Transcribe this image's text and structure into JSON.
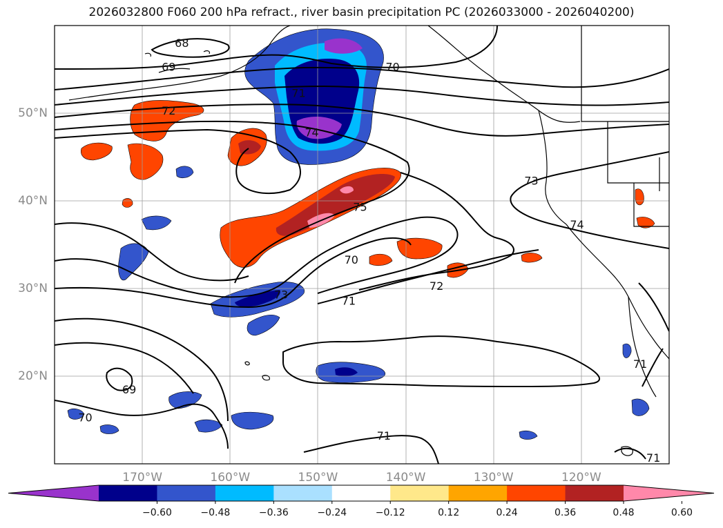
{
  "title": "2026032800 F060 200 hPa refract., river basin precipitation PC (2026033000 - 2026040200)",
  "map": {
    "extent": {
      "lon_min": -180,
      "lon_max": -110,
      "lat_min": 10,
      "lat_max": 60
    },
    "lat_ticks": [
      {
        "value": 20,
        "label": "20°N"
      },
      {
        "value": 30,
        "label": "30°N"
      },
      {
        "value": 40,
        "label": "40°N"
      },
      {
        "value": 50,
        "label": "50°N"
      }
    ],
    "lon_ticks": [
      {
        "value": -170,
        "label": "170°W"
      },
      {
        "value": -160,
        "label": "160°W"
      },
      {
        "value": -150,
        "label": "150°W"
      },
      {
        "value": -140,
        "label": "140°W"
      },
      {
        "value": -130,
        "label": "130°W"
      },
      {
        "value": -120,
        "label": "120°W"
      }
    ],
    "contour_labels": [
      {
        "text": "68",
        "lon": -165.5,
        "lat": 57.9
      },
      {
        "text": "69",
        "lon": -167.0,
        "lat": 55.2
      },
      {
        "text": "70",
        "lon": -141.5,
        "lat": 55.2
      },
      {
        "text": "71",
        "lon": -152.2,
        "lat": 52.2
      },
      {
        "text": "72",
        "lon": -167.0,
        "lat": 50.2
      },
      {
        "text": "74",
        "lon": -150.7,
        "lat": 47.7
      },
      {
        "text": "75",
        "lon": -145.2,
        "lat": 39.2
      },
      {
        "text": "73",
        "lon": -125.7,
        "lat": 42.2
      },
      {
        "text": "74",
        "lon": -120.5,
        "lat": 37.2
      },
      {
        "text": "70",
        "lon": -146.2,
        "lat": 33.2
      },
      {
        "text": "73",
        "lon": -154.2,
        "lat": 29.2
      },
      {
        "text": "71",
        "lon": -146.5,
        "lat": 28.5
      },
      {
        "text": "72",
        "lon": -136.5,
        "lat": 30.2
      },
      {
        "text": "69",
        "lon": -171.5,
        "lat": 18.4
      },
      {
        "text": "70",
        "lon": -176.5,
        "lat": 15.2
      },
      {
        "text": "71",
        "lon": -142.5,
        "lat": 13.1
      },
      {
        "text": "71",
        "lon": -113.3,
        "lat": 21.3
      },
      {
        "text": "71",
        "lon": -111.8,
        "lat": 10.6
      }
    ]
  },
  "colorbar": {
    "colors": [
      "#9933cc",
      "#00008b",
      "#3355cc",
      "#00bbff",
      "#aae0ff",
      "#ffffff",
      "#ffe88a",
      "#ffa500",
      "#ff4500",
      "#b22222",
      "#ff88aa"
    ],
    "tick_labels": [
      "−0.60",
      "−0.48",
      "−0.36",
      "−0.24",
      "−0.12",
      "0.12",
      "0.24",
      "0.36",
      "0.48",
      "0.60"
    ]
  }
}
